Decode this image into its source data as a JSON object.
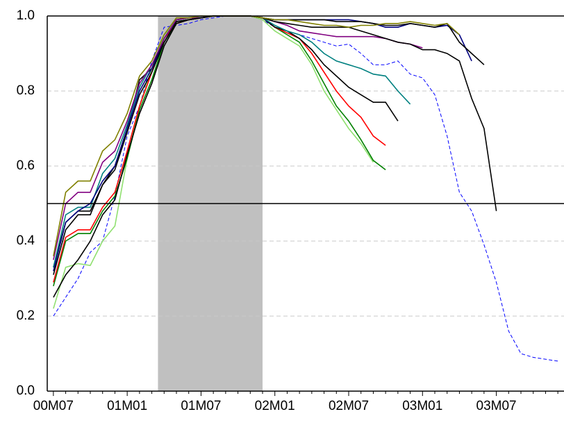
{
  "chart_data": {
    "type": "line",
    "categories": [
      "00M07",
      null,
      null,
      null,
      null,
      null,
      "01M01",
      null,
      null,
      null,
      null,
      null,
      "01M07",
      null,
      null,
      null,
      null,
      null,
      "02M01",
      null,
      null,
      null,
      null,
      null,
      "02M07",
      null,
      null,
      null,
      null,
      null,
      "03M01",
      null,
      null,
      null,
      null,
      null,
      "03M07",
      null,
      null,
      null,
      null,
      null
    ],
    "ylim": [
      0,
      1
    ],
    "yticks": [
      {
        "value": 0,
        "label": "0.0"
      },
      0.2,
      0.4,
      0.6,
      0.8,
      {
        "value": 1,
        "label": "1.0"
      }
    ],
    "grid": true,
    "hline": 0.5,
    "shade": [
      9,
      17
    ],
    "series": [
      {
        "color": "#0000ff",
        "dashed": true,
        "values": [
          0.2,
          0.25,
          0.3,
          0.37,
          0.4,
          0.52,
          0.68,
          0.76,
          0.88,
          0.97,
          0.975,
          0.98,
          0.99,
          0.995,
          1.0,
          1.0,
          1.0,
          0.99,
          0.97,
          0.96,
          0.95,
          0.94,
          0.93,
          0.92,
          0.925,
          0.9,
          0.87,
          0.87,
          0.88,
          0.845,
          0.835,
          0.79,
          0.68,
          0.53,
          0.48,
          0.39,
          0.29,
          0.16,
          0.1,
          0.09,
          0.085,
          0.08
        ]
      },
      {
        "color": "#90e070",
        "values": [
          0.22,
          0.33,
          0.34,
          0.335,
          0.4,
          0.44,
          0.62,
          0.76,
          0.86,
          0.95,
          0.98,
          0.99,
          0.995,
          1.0,
          1.0,
          1.0,
          1.0,
          0.99,
          0.96,
          0.94,
          0.92,
          0.87,
          0.8,
          0.75,
          0.7,
          0.66,
          0.61,
          null,
          null,
          null,
          null,
          null,
          null,
          null,
          null,
          null,
          null,
          null,
          null,
          null,
          null,
          null
        ]
      },
      {
        "color": "#008000",
        "values": [
          0.28,
          0.4,
          0.42,
          0.42,
          0.48,
          0.52,
          0.62,
          0.75,
          0.83,
          0.93,
          0.98,
          0.99,
          0.995,
          1.0,
          1.0,
          1.0,
          1.0,
          0.995,
          0.97,
          0.95,
          0.93,
          0.88,
          0.82,
          0.76,
          0.72,
          0.67,
          0.615,
          0.59,
          null,
          null,
          null,
          null,
          null,
          null,
          null,
          null,
          null,
          null,
          null,
          null,
          null,
          null
        ]
      },
      {
        "color": "#ff0000",
        "values": [
          0.29,
          0.41,
          0.43,
          0.43,
          0.49,
          0.53,
          0.64,
          0.76,
          0.85,
          0.94,
          0.98,
          0.99,
          0.995,
          1.0,
          1.0,
          1.0,
          1.0,
          0.995,
          0.97,
          0.955,
          0.94,
          0.9,
          0.85,
          0.8,
          0.76,
          0.73,
          0.68,
          0.655,
          null,
          null,
          null,
          null,
          null,
          null,
          null,
          null,
          null,
          null,
          null,
          null,
          null,
          null
        ]
      },
      {
        "color": "#000000",
        "values": [
          0.33,
          0.45,
          0.48,
          0.48,
          0.55,
          0.6,
          0.7,
          0.83,
          0.86,
          0.94,
          0.99,
          0.995,
          0.995,
          1.0,
          1.0,
          1.0,
          1.0,
          0.995,
          0.97,
          0.96,
          0.94,
          0.91,
          0.87,
          0.84,
          0.81,
          0.79,
          0.77,
          0.77,
          0.72,
          null,
          null,
          null,
          null,
          null,
          null,
          null,
          null,
          null,
          null,
          null,
          null,
          null
        ]
      },
      {
        "color": "#008080",
        "values": [
          0.33,
          0.47,
          0.49,
          0.49,
          0.58,
          0.62,
          0.71,
          0.81,
          0.87,
          0.94,
          0.99,
          0.995,
          0.995,
          1.0,
          1.0,
          1.0,
          1.0,
          0.995,
          0.975,
          0.96,
          0.95,
          0.93,
          0.9,
          0.88,
          0.87,
          0.86,
          0.845,
          0.84,
          0.8,
          0.765,
          null,
          null,
          null,
          null,
          null,
          null,
          null,
          null,
          null,
          null,
          null,
          null
        ]
      },
      {
        "color": "#800080",
        "values": [
          0.35,
          0.5,
          0.53,
          0.53,
          0.61,
          0.64,
          0.72,
          0.82,
          0.87,
          0.94,
          0.99,
          0.995,
          0.995,
          1.0,
          1.0,
          1.0,
          1.0,
          0.995,
          0.985,
          0.975,
          0.96,
          0.955,
          0.95,
          0.945,
          0.945,
          0.945,
          0.945,
          0.94,
          0.93,
          0.925,
          0.915,
          null,
          null,
          null,
          null,
          null,
          null,
          null,
          null,
          null,
          null,
          null
        ]
      },
      {
        "color": "#000000",
        "values": [
          0.25,
          0.31,
          0.35,
          0.4,
          0.47,
          0.51,
          0.63,
          0.74,
          0.82,
          0.92,
          0.98,
          0.99,
          0.995,
          1.0,
          1.0,
          1.0,
          1.0,
          0.995,
          0.985,
          0.98,
          0.975,
          0.97,
          0.97,
          0.97,
          0.97,
          0.96,
          0.95,
          0.94,
          0.93,
          0.925,
          0.91,
          0.91,
          0.9,
          0.88,
          0.78,
          0.7,
          0.48,
          null,
          null,
          null,
          null,
          null
        ]
      },
      {
        "color": "#000080",
        "values": [
          0.32,
          0.45,
          0.48,
          0.5,
          0.56,
          0.6,
          0.7,
          0.8,
          0.86,
          0.93,
          0.985,
          0.99,
          0.995,
          1.0,
          1.0,
          1.0,
          1.0,
          0.995,
          0.99,
          0.99,
          0.99,
          0.99,
          0.99,
          0.99,
          0.99,
          0.985,
          0.98,
          0.97,
          0.97,
          0.98,
          0.975,
          0.97,
          0.975,
          0.95,
          0.88,
          null,
          null,
          null,
          null,
          null,
          null,
          null
        ]
      },
      {
        "color": "#000000",
        "values": [
          0.31,
          0.43,
          0.47,
          0.47,
          0.55,
          0.59,
          0.69,
          0.79,
          0.85,
          0.93,
          0.985,
          0.99,
          0.995,
          1.0,
          1.0,
          1.0,
          1.0,
          0.995,
          0.99,
          0.99,
          0.99,
          0.99,
          0.99,
          0.985,
          0.985,
          0.985,
          0.98,
          0.975,
          0.975,
          0.98,
          0.975,
          0.97,
          0.98,
          0.93,
          0.9,
          0.87,
          null,
          null,
          null,
          null,
          null,
          null
        ]
      },
      {
        "color": "#808000",
        "values": [
          0.36,
          0.53,
          0.56,
          0.56,
          0.64,
          0.67,
          0.74,
          0.84,
          0.88,
          0.95,
          0.995,
          0.995,
          1.0,
          1.0,
          1.0,
          1.0,
          1.0,
          0.995,
          0.99,
          0.99,
          0.985,
          0.98,
          0.975,
          0.975,
          0.97,
          0.975,
          0.975,
          0.98,
          0.98,
          0.985,
          0.98,
          0.975,
          0.98,
          0.95,
          null,
          null,
          null,
          null,
          null,
          null,
          null,
          null
        ]
      }
    ]
  }
}
